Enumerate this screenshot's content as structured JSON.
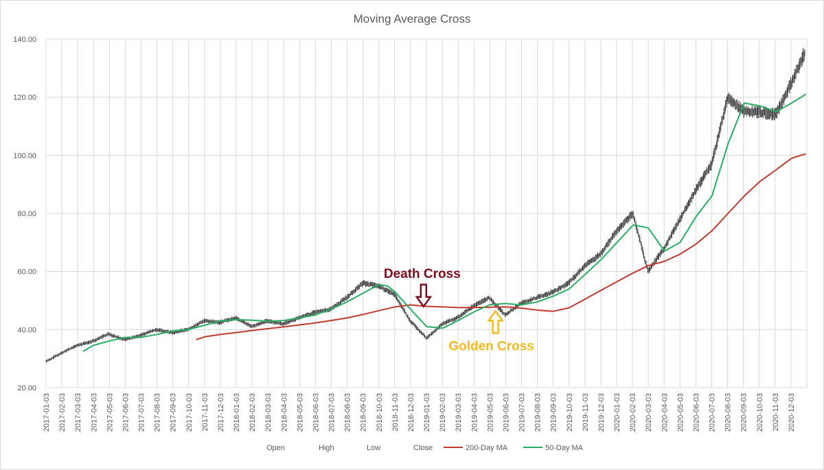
{
  "chart_data": {
    "type": "line",
    "title": "Moving Average Cross",
    "ylim": [
      20,
      140
    ],
    "yticks": [
      "20.00",
      "40.00",
      "60.00",
      "80.00",
      "100.00",
      "120.00",
      "140.00"
    ],
    "x_tick_labels": [
      "2017-01-03",
      "2017-02-03",
      "2017-03-03",
      "2017-04-03",
      "2017-05-03",
      "2017-06-03",
      "2017-07-03",
      "2017-08-03",
      "2017-09-03",
      "2017-10-03",
      "2017-11-03",
      "2017-12-03",
      "2018-01-03",
      "2018-02-03",
      "2018-03-03",
      "2018-04-03",
      "2018-05-03",
      "2018-06-03",
      "2018-07-03",
      "2018-08-03",
      "2018-09-03",
      "2018-10-03",
      "2018-11-03",
      "2018-12-03",
      "2019-01-03",
      "2019-02-03",
      "2019-03-03",
      "2019-04-03",
      "2019-05-03",
      "2019-06-03",
      "2019-07-03",
      "2019-08-03",
      "2019-09-03",
      "2019-10-03",
      "2019-11-03",
      "2019-12-03",
      "2020-01-03",
      "2020-02-03",
      "2020-03-03",
      "2020-04-03",
      "2020-05-03",
      "2020-06-03",
      "2020-07-03",
      "2020-08-03",
      "2020-09-03",
      "2020-10-03",
      "2020-11-03",
      "2020-12-03"
    ],
    "legend": [
      {
        "name": "Open",
        "color": ""
      },
      {
        "name": "High",
        "color": ""
      },
      {
        "name": "Low",
        "color": ""
      },
      {
        "name": "Close",
        "color": ""
      },
      {
        "name": "200-Day MA",
        "color": "#c0392b"
      },
      {
        "name": "50-Day MA",
        "color": "#27ae60"
      }
    ],
    "legend_position": "bottom",
    "grid": true,
    "series": [
      {
        "name": "Close",
        "color": "#404040",
        "x": [
          "2017-01-03",
          "2017-02-03",
          "2017-03-03",
          "2017-04-03",
          "2017-05-03",
          "2017-06-03",
          "2017-07-03",
          "2017-08-03",
          "2017-09-03",
          "2017-10-03",
          "2017-11-03",
          "2017-12-03",
          "2018-01-03",
          "2018-02-03",
          "2018-03-03",
          "2018-04-03",
          "2018-05-03",
          "2018-06-03",
          "2018-07-03",
          "2018-08-03",
          "2018-09-03",
          "2018-10-03",
          "2018-11-03",
          "2018-12-03",
          "2019-01-03",
          "2019-02-03",
          "2019-03-03",
          "2019-04-03",
          "2019-05-03",
          "2019-06-03",
          "2019-07-03",
          "2019-08-03",
          "2019-09-03",
          "2019-10-03",
          "2019-11-03",
          "2019-12-03",
          "2020-01-03",
          "2020-02-03",
          "2020-03-03",
          "2020-04-03",
          "2020-05-03",
          "2020-06-03",
          "2020-07-03",
          "2020-08-03",
          "2020-09-03",
          "2020-10-03",
          "2020-11-03",
          "2020-12-03",
          "2020-12-30"
        ],
        "values": [
          29,
          32,
          34.5,
          36,
          38.5,
          36.5,
          38,
          40,
          39,
          40,
          43,
          42.5,
          44,
          41,
          43,
          42,
          44,
          46,
          47,
          51,
          56,
          55,
          52,
          43,
          37,
          42,
          44,
          48,
          51,
          45,
          49,
          51,
          53,
          56,
          62,
          66,
          74,
          80,
          60,
          68,
          78,
          88,
          97,
          120,
          115,
          115,
          114,
          125,
          136
        ]
      },
      {
        "name": "200-Day MA",
        "color": "#c0392b",
        "x": [
          "2017-10-18",
          "2017-11-03",
          "2017-12-03",
          "2018-01-03",
          "2018-02-03",
          "2018-03-03",
          "2018-04-03",
          "2018-05-03",
          "2018-06-03",
          "2018-07-03",
          "2018-08-03",
          "2018-09-03",
          "2018-10-03",
          "2018-11-03",
          "2018-12-03",
          "2019-01-03",
          "2019-02-03",
          "2019-03-03",
          "2019-04-03",
          "2019-05-03",
          "2019-06-03",
          "2019-07-03",
          "2019-08-03",
          "2019-09-03",
          "2019-10-03",
          "2019-11-03",
          "2019-12-03",
          "2020-01-03",
          "2020-02-03",
          "2020-03-03",
          "2020-04-03",
          "2020-05-03",
          "2020-06-03",
          "2020-07-03",
          "2020-08-03",
          "2020-09-03",
          "2020-10-03",
          "2020-11-03",
          "2020-12-03",
          "2020-12-30"
        ],
        "values": [
          36.5,
          37.5,
          38.3,
          39,
          39.7,
          40.3,
          40.9,
          41.6,
          42.3,
          43.1,
          44,
          45.2,
          46.5,
          47.8,
          48.5,
          48,
          47.8,
          47.6,
          47.6,
          47.7,
          47.8,
          47.4,
          46.7,
          46.3,
          47.5,
          50.5,
          53.5,
          56.5,
          59.5,
          62,
          63.5,
          66,
          69.5,
          74,
          80,
          86,
          91,
          95,
          99,
          100.5
        ]
      },
      {
        "name": "50-Day MA",
        "color": "#27ae60",
        "x": [
          "2017-03-15",
          "2017-04-03",
          "2017-05-03",
          "2017-06-03",
          "2017-07-03",
          "2017-08-03",
          "2017-09-03",
          "2017-10-03",
          "2017-11-03",
          "2017-12-03",
          "2018-01-03",
          "2018-02-03",
          "2018-03-03",
          "2018-04-03",
          "2018-05-03",
          "2018-06-03",
          "2018-07-03",
          "2018-08-03",
          "2018-09-03",
          "2018-10-03",
          "2018-10-20",
          "2018-11-03",
          "2018-12-03",
          "2019-01-03",
          "2019-02-03",
          "2019-03-03",
          "2019-04-03",
          "2019-05-03",
          "2019-06-03",
          "2019-07-03",
          "2019-08-03",
          "2019-09-03",
          "2019-10-03",
          "2019-11-03",
          "2019-12-03",
          "2020-01-03",
          "2020-02-03",
          "2020-03-03",
          "2020-04-03",
          "2020-05-03",
          "2020-06-03",
          "2020-07-03",
          "2020-08-03",
          "2020-09-03",
          "2020-10-03",
          "2020-11-03",
          "2020-12-03",
          "2020-12-30"
        ],
        "values": [
          32.5,
          34.5,
          36,
          37.3,
          37.3,
          38.3,
          39.5,
          40,
          41.5,
          43,
          43.4,
          43.2,
          42.9,
          43.1,
          44,
          45,
          47,
          49.5,
          52.5,
          55.5,
          55,
          53,
          47,
          41,
          40.5,
          43,
          46,
          48.5,
          49,
          48.5,
          49.5,
          51.5,
          54,
          59,
          64,
          70,
          76,
          75,
          67,
          70,
          79,
          86,
          104,
          118,
          117,
          115,
          118,
          121
        ]
      }
    ],
    "annotations": [
      {
        "text": "Death Cross",
        "color": "#7b0c1c",
        "date": "2018-12-28",
        "value": 48.4,
        "arrow": "down"
      },
      {
        "text": "Golden Cross",
        "color": "#f5b820",
        "date": "2019-05-15",
        "value": 47.8,
        "arrow": "up"
      }
    ]
  }
}
